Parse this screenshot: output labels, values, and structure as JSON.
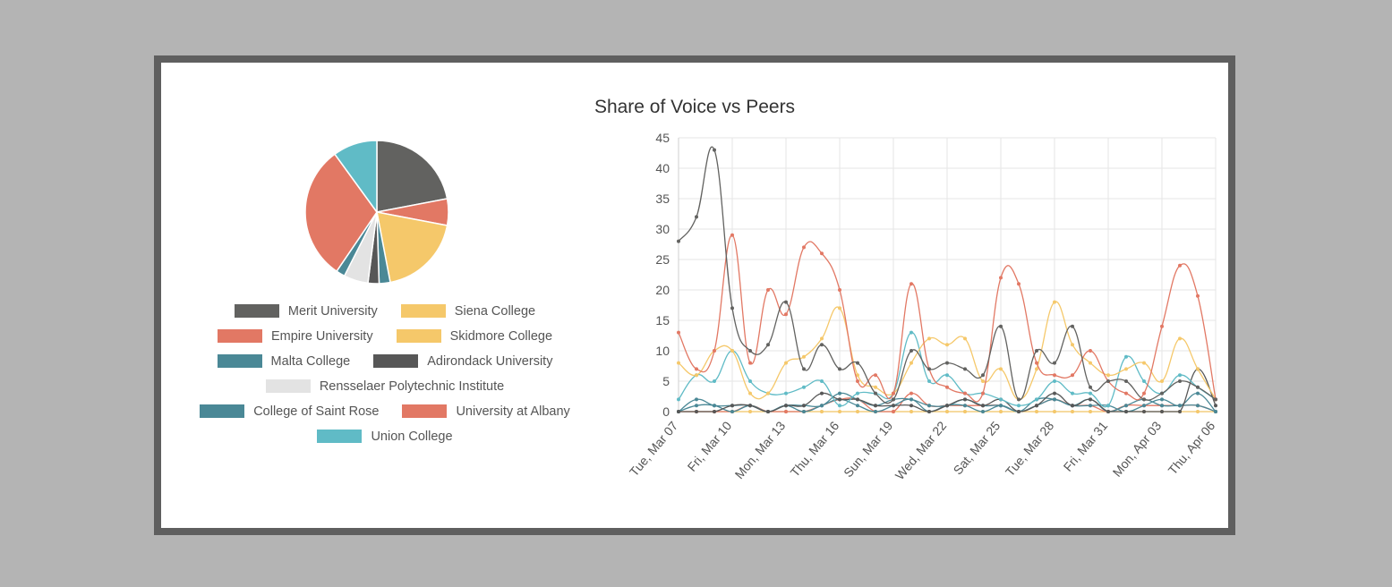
{
  "chart_data": [
    {
      "type": "pie",
      "title": "Share of Voice vs Peers",
      "legend_position": "bottom",
      "slices": [
        {
          "name": "Merit University",
          "value": 22,
          "color": "#626260"
        },
        {
          "name": "Empire University",
          "value": 6,
          "color": "#e27864"
        },
        {
          "name": "Siena College",
          "value": 19,
          "color": "#f5c86a"
        },
        {
          "name": "Skidmore College",
          "value": 0,
          "color": "#f5c86a"
        },
        {
          "name": "Malta College",
          "value": 2.5,
          "color": "#4a8896"
        },
        {
          "name": "Adirondack University",
          "value": 2.5,
          "color": "#575757"
        },
        {
          "name": "Rensselaer Polytechnic Institute",
          "value": 5.5,
          "color": "#e3e3e3"
        },
        {
          "name": "College of Saint Rose",
          "value": 2,
          "color": "#4a8896"
        },
        {
          "name": "University at Albany",
          "value": 30.5,
          "color": "#e27864"
        },
        {
          "name": "Union College",
          "value": 10,
          "color": "#60bbc6"
        }
      ]
    },
    {
      "type": "line",
      "ylim": [
        0,
        45
      ],
      "y_ticks": [
        0,
        5,
        10,
        15,
        20,
        25,
        30,
        35,
        40,
        45
      ],
      "x": [
        "2023-03-07",
        "2023-03-08",
        "2023-03-09",
        "2023-03-10",
        "2023-03-11",
        "2023-03-12",
        "2023-03-13",
        "2023-03-14",
        "2023-03-15",
        "2023-03-16",
        "2023-03-17",
        "2023-03-18",
        "2023-03-19",
        "2023-03-20",
        "2023-03-21",
        "2023-03-22",
        "2023-03-23",
        "2023-03-24",
        "2023-03-25",
        "2023-03-26",
        "2023-03-27",
        "2023-03-28",
        "2023-03-29",
        "2023-03-30",
        "2023-03-31",
        "2023-04-01",
        "2023-04-02",
        "2023-04-03",
        "2023-04-04",
        "2023-04-05",
        "2023-04-06"
      ],
      "x_tick_labels": [
        "Tue, Mar 07",
        "Fri, Mar 10",
        "Mon, Mar 13",
        "Thu, Mar 16",
        "Sun, Mar 19",
        "Wed, Mar 22",
        "Sat, Mar 25",
        "Tue, Mar 28",
        "Fri, Mar 31",
        "Mon, Apr 03",
        "Thu, Apr 06"
      ],
      "x_tick_every": 3,
      "grid": true,
      "series": [
        {
          "name": "Merit University",
          "color": "#626260",
          "values": [
            28,
            32,
            43,
            17,
            10,
            11,
            18,
            7,
            11,
            7,
            8,
            3,
            2,
            10,
            7,
            8,
            7,
            6,
            14,
            2,
            10,
            8,
            14,
            4,
            5,
            5,
            2,
            3,
            5,
            4,
            2
          ]
        },
        {
          "name": "University at Albany",
          "color": "#e27864",
          "values": [
            13,
            7,
            10,
            29,
            8,
            20,
            16,
            27,
            26,
            20,
            5,
            6,
            3,
            21,
            7,
            4,
            3,
            3,
            22,
            21,
            8,
            6,
            6,
            10,
            5,
            3,
            3,
            14,
            24,
            19,
            2
          ]
        },
        {
          "name": "Siena College",
          "color": "#f5c86a",
          "values": [
            8,
            6,
            10,
            10,
            3,
            3,
            8,
            9,
            12,
            17,
            6,
            4,
            3,
            8,
            12,
            11,
            12,
            5,
            7,
            2,
            7,
            18,
            11,
            8,
            6,
            7,
            8,
            5,
            12,
            7,
            2
          ]
        },
        {
          "name": "Union College",
          "color": "#60bbc6",
          "values": [
            2,
            6,
            5,
            10,
            5,
            3,
            3,
            4,
            5,
            1,
            3,
            3,
            3,
            13,
            5,
            6,
            3,
            3,
            2,
            1,
            2,
            5,
            3,
            3,
            1,
            9,
            5,
            3,
            6,
            4,
            2
          ]
        },
        {
          "name": "Adirondack University",
          "color": "#575757",
          "values": [
            0,
            0,
            0,
            1,
            1,
            0,
            1,
            1,
            3,
            2,
            2,
            1,
            1,
            1,
            0,
            1,
            2,
            1,
            2,
            0,
            1,
            3,
            1,
            2,
            0,
            0,
            0,
            0,
            0,
            7,
            1
          ]
        },
        {
          "name": "College of Saint Rose",
          "color": "#4a8896",
          "values": [
            0,
            2,
            1,
            1,
            1,
            0,
            1,
            1,
            1,
            3,
            2,
            1,
            2,
            2,
            1,
            1,
            2,
            1,
            1,
            0,
            2,
            2,
            1,
            1,
            1,
            0,
            1,
            2,
            1,
            3,
            0
          ]
        },
        {
          "name": "Malta College",
          "color": "#4a8896",
          "values": [
            0,
            1,
            1,
            0,
            1,
            0,
            1,
            0,
            1,
            2,
            1,
            0,
            1,
            2,
            0,
            1,
            1,
            0,
            1,
            0,
            1,
            2,
            1,
            2,
            0,
            1,
            2,
            1,
            1,
            1,
            0
          ]
        },
        {
          "name": "Empire University",
          "color": "#e27864",
          "values": [
            0,
            0,
            0,
            0,
            1,
            0,
            0,
            0,
            1,
            2,
            2,
            0,
            0,
            3,
            1,
            1,
            1,
            1,
            1,
            0,
            1,
            2,
            1,
            1,
            0,
            1,
            1,
            1,
            1,
            1,
            0
          ]
        },
        {
          "name": "Skidmore College",
          "color": "#f5c86a",
          "values": [
            0,
            0,
            0,
            0,
            0,
            0,
            0,
            0,
            0,
            0,
            0,
            0,
            0,
            0,
            0,
            0,
            0,
            0,
            0,
            0,
            0,
            0,
            0,
            0,
            0,
            0,
            0,
            0,
            0,
            0,
            0
          ]
        },
        {
          "name": "Rensselaer Polytechnic Institute",
          "color": "#e3e3e3",
          "values": [
            0,
            0,
            0,
            0,
            0,
            0,
            0,
            0,
            0,
            0,
            0,
            0,
            0,
            0,
            0,
            0,
            0,
            0,
            0,
            0,
            0,
            0,
            0,
            0,
            0,
            0,
            0,
            0,
            0,
            0,
            0
          ]
        }
      ]
    }
  ],
  "legend": [
    {
      "label": "Merit University",
      "color": "#626260"
    },
    {
      "label": "Siena College",
      "color": "#f5c86a"
    },
    {
      "label": "Empire University",
      "color": "#e27864"
    },
    {
      "label": "Skidmore College",
      "color": "#f5c86a"
    },
    {
      "label": "Malta College",
      "color": "#4a8896"
    },
    {
      "label": "Adirondack University",
      "color": "#575757"
    },
    {
      "label": "Rensselaer Polytechnic Institute",
      "color": "#e3e3e3"
    },
    {
      "label": "College of Saint Rose",
      "color": "#4a8896"
    },
    {
      "label": "University at Albany",
      "color": "#e27864"
    },
    {
      "label": "Union College",
      "color": "#60bbc6"
    }
  ]
}
